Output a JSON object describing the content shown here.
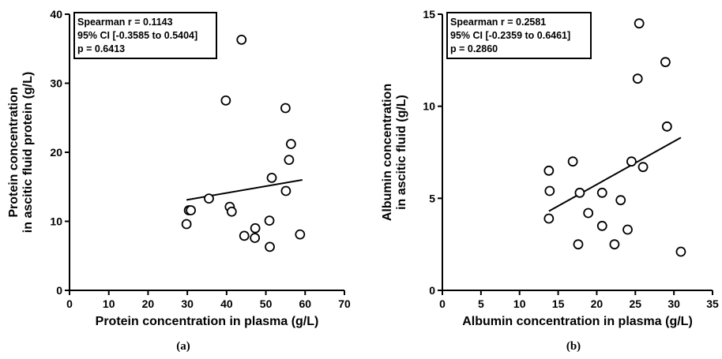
{
  "chart_data": [
    {
      "type": "scatter",
      "panel_label": "(a)",
      "xlabel": "Protein concentration in plasma (g/L)",
      "ylabel": [
        "Protein concentration",
        "in ascitic fluid protein (g/L)"
      ],
      "xlim": [
        0,
        70
      ],
      "ylim": [
        0,
        40
      ],
      "xticks": [
        0,
        10,
        20,
        30,
        40,
        50,
        60,
        70
      ],
      "yticks": [
        0,
        10,
        20,
        30,
        40
      ],
      "stats": [
        "Spearman r  = 0.1143",
        "95% CI [-0.3585 to 0.5404]",
        "p = 0.6413"
      ],
      "points": [
        [
          29.8,
          9.6
        ],
        [
          30.4,
          11.6
        ],
        [
          30.9,
          11.6
        ],
        [
          35.5,
          13.3
        ],
        [
          39.8,
          27.5
        ],
        [
          40.8,
          12.1
        ],
        [
          41.3,
          11.4
        ],
        [
          43.8,
          36.3
        ],
        [
          44.5,
          7.9
        ],
        [
          47.2,
          7.6
        ],
        [
          47.3,
          9.0
        ],
        [
          50.9,
          10.1
        ],
        [
          51.0,
          6.3
        ],
        [
          51.5,
          16.3
        ],
        [
          55.0,
          26.4
        ],
        [
          55.1,
          14.4
        ],
        [
          55.9,
          18.9
        ],
        [
          56.4,
          21.2
        ],
        [
          58.7,
          8.1
        ]
      ],
      "trendline": [
        [
          29.8,
          13.1
        ],
        [
          59.3,
          16.0
        ]
      ]
    },
    {
      "type": "scatter",
      "panel_label": "(b)",
      "xlabel": "Albumin concentration in plasma (g/L)",
      "ylabel": [
        "Albumin concentration",
        "in ascitic fluid (g/L)"
      ],
      "xlim": [
        0,
        35
      ],
      "ylim": [
        0,
        15
      ],
      "xticks": [
        0,
        5,
        10,
        15,
        20,
        25,
        30,
        35
      ],
      "yticks": [
        0,
        5,
        10,
        15
      ],
      "stats": [
        "Spearman r  =  0.2581",
        "95% CI [-0.2359 to 0.6461]",
        "p = 0.2860"
      ],
      "points": [
        [
          13.8,
          6.5
        ],
        [
          13.9,
          5.4
        ],
        [
          13.8,
          3.9
        ],
        [
          16.9,
          7.0
        ],
        [
          17.6,
          2.5
        ],
        [
          17.8,
          5.3
        ],
        [
          18.9,
          4.2
        ],
        [
          20.7,
          5.3
        ],
        [
          20.7,
          3.5
        ],
        [
          22.3,
          2.5
        ],
        [
          23.1,
          4.9
        ],
        [
          24.0,
          3.3
        ],
        [
          24.5,
          7.0
        ],
        [
          25.3,
          11.5
        ],
        [
          25.5,
          14.5
        ],
        [
          26.0,
          6.7
        ],
        [
          28.9,
          12.4
        ],
        [
          29.1,
          8.9
        ],
        [
          30.9,
          2.1
        ]
      ],
      "trendline": [
        [
          13.8,
          4.3
        ],
        [
          30.9,
          8.3
        ]
      ]
    }
  ]
}
